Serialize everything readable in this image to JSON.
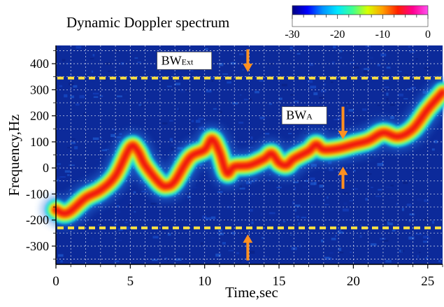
{
  "chart_data": {
    "type": "heatmap",
    "title": "Dynamic Doppler spectrum",
    "xlabel": "Time,sec",
    "ylabel": "Frequency,Hz",
    "xlim": [
      0,
      26
    ],
    "ylim": [
      -370,
      470
    ],
    "x_ticks": [
      0,
      5,
      10,
      15,
      20,
      25
    ],
    "y_ticks": [
      -300,
      -200,
      -100,
      0,
      100,
      200,
      300,
      400
    ],
    "grid": true,
    "colorbar": {
      "ticks": [
        -30,
        -20,
        -10,
        0
      ],
      "range": [
        -30,
        0
      ],
      "placement": "top-right",
      "colors": [
        "#000080",
        "#0000ff",
        "#0090ff",
        "#00e8ff",
        "#40ff90",
        "#d8ff00",
        "#ffa000",
        "#ff2000",
        "#ff0090",
        "#ff50f0"
      ]
    },
    "ridge": {
      "x": [
        0,
        0.5,
        1,
        2,
        3,
        4,
        5,
        5.5,
        6,
        7,
        7.5,
        8,
        9,
        10,
        10.5,
        11,
        11.5,
        12,
        13,
        14,
        14.5,
        15,
        15.5,
        16,
        17,
        17.5,
        18,
        19,
        20,
        21,
        22,
        23,
        24,
        25,
        26
      ],
      "y": [
        -160,
        -175,
        -165,
        -115,
        -85,
        -30,
        80,
        65,
        10,
        -60,
        -70,
        -50,
        40,
        70,
        110,
        60,
        -20,
        5,
        10,
        35,
        55,
        20,
        10,
        35,
        65,
        90,
        70,
        75,
        90,
        105,
        135,
        120,
        150,
        225,
        290
      ]
    },
    "annotations": {
      "bw_ext": {
        "label": "BW",
        "subscript": "Ext",
        "upper_line": 345,
        "lower_line": -230,
        "arrow_time": 12.9,
        "color": "#ffe040"
      },
      "bw_a": {
        "label": "BW",
        "subscript": "A",
        "arrow_time": 19.3,
        "arrow_color": "#ff9020"
      }
    }
  }
}
